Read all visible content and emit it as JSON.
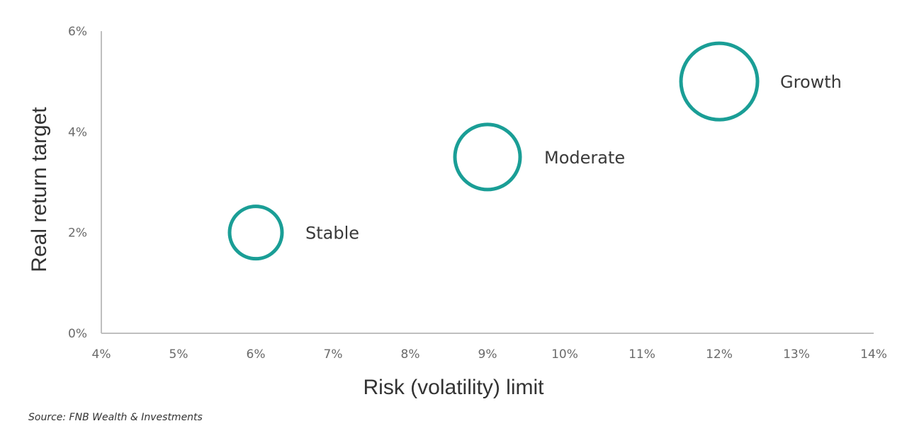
{
  "chart_data": {
    "type": "scatter",
    "title": "",
    "xlabel": "Risk (volatility) limit",
    "ylabel": "Real return target",
    "xlim": [
      4,
      14
    ],
    "ylim": [
      0,
      6
    ],
    "x_ticks": [
      "4%",
      "5%",
      "6%",
      "7%",
      "8%",
      "9%",
      "10%",
      "11%",
      "12%",
      "13%",
      "14%"
    ],
    "y_ticks": [
      "0%",
      "2%",
      "4%",
      "6%"
    ],
    "points": [
      {
        "label": "Stable",
        "x": 6,
        "y": 2
      },
      {
        "label": "Moderate",
        "x": 9,
        "y": 3.5
      },
      {
        "label": "Growth",
        "x": 12,
        "y": 5
      }
    ],
    "marker_color": "#1a9e96",
    "axis_color": "#bfbfbf",
    "grid": false,
    "legend": "none"
  },
  "source": "Source: FNB Wealth & Investments"
}
